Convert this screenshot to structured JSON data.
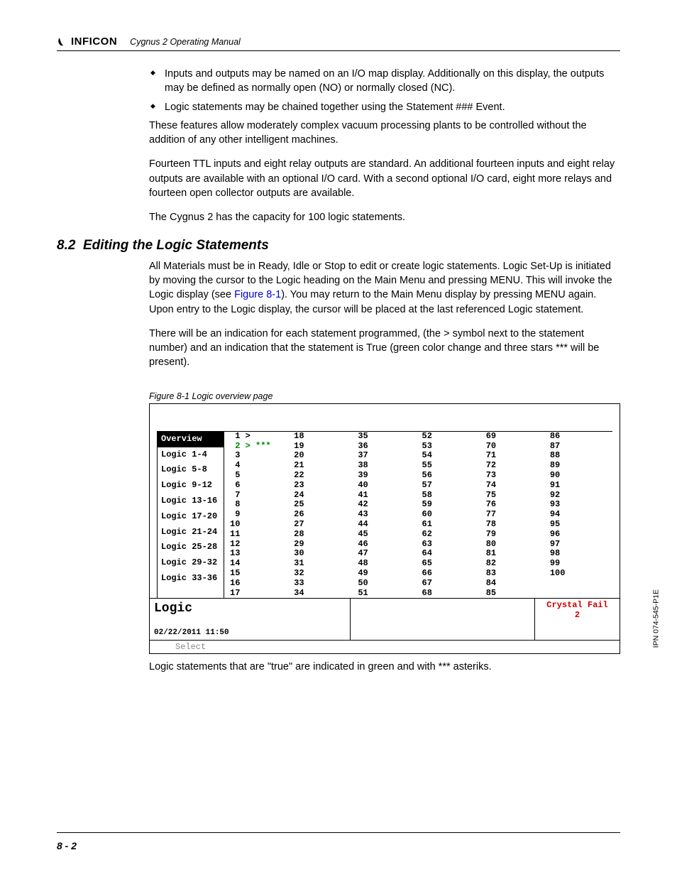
{
  "header": {
    "logo_text": "INFICON",
    "manual_title": "Cygnus 2 Operating Manual"
  },
  "bullets": [
    "Inputs and outputs may be named on an I/O map display. Additionally on this display, the outputs may be defined as normally open (NO) or normally closed (NC).",
    "Logic statements may be chained together using the Statement ### Event."
  ],
  "paras": {
    "p1": "These features allow moderately complex vacuum processing plants to be controlled without the addition of any other intelligent machines.",
    "p2": "Fourteen TTL inputs and eight relay outputs are standard. An additional fourteen inputs and eight relay outputs are available with an optional I/O card. With a second optional I/O card, eight more relays and fourteen open collector outputs are available.",
    "p3": "The Cygnus 2 has the capacity for 100 logic statements."
  },
  "section": {
    "num": "8.2",
    "title": "Editing the Logic Statements"
  },
  "paras2": {
    "p4_a": "All Materials must be in Ready, Idle or Stop to edit or create logic statements. Logic Set-Up is initiated by moving the cursor to the Logic heading on the Main Menu and pressing MENU. This will invoke the Logic display (see ",
    "p4_link": "Figure 8-1",
    "p4_b": "). You may return to the Main Menu display by pressing MENU again. Upon entry to the Logic display, the cursor will be placed at the last referenced Logic statement.",
    "p5": "There will be an indication for each statement programmed, (the > symbol next to the statement number) and an indication that the statement is True (green color change and three stars *** will be present)."
  },
  "figure": {
    "caption": "Figure 8-1  Logic overview page",
    "sidebar_items": [
      {
        "label": "Overview",
        "selected": true
      },
      {
        "label": "Logic 1-4",
        "selected": false
      },
      {
        "label": "Logic 5-8",
        "selected": false
      },
      {
        "label": "Logic 9-12",
        "selected": false
      },
      {
        "label": "Logic 13-16",
        "selected": false
      },
      {
        "label": "Logic 17-20",
        "selected": false
      },
      {
        "label": "Logic 21-24",
        "selected": false
      },
      {
        "label": "Logic 25-28",
        "selected": false
      },
      {
        "label": "Logic 29-32",
        "selected": false
      },
      {
        "label": "Logic 33-36",
        "selected": false
      }
    ],
    "columns": [
      [
        {
          "n": " 1",
          "mark": ">",
          "stars": "",
          "true": false
        },
        {
          "n": " 2",
          "mark": ">",
          "stars": "***",
          "true": true
        },
        {
          "n": " 3",
          "mark": "",
          "stars": "",
          "true": false
        },
        {
          "n": " 4",
          "mark": "",
          "stars": "",
          "true": false
        },
        {
          "n": " 5",
          "mark": "",
          "stars": "",
          "true": false
        },
        {
          "n": " 6",
          "mark": "",
          "stars": "",
          "true": false
        },
        {
          "n": " 7",
          "mark": "",
          "stars": "",
          "true": false
        },
        {
          "n": " 8",
          "mark": "",
          "stars": "",
          "true": false
        },
        {
          "n": " 9",
          "mark": "",
          "stars": "",
          "true": false
        },
        {
          "n": "10",
          "mark": "",
          "stars": "",
          "true": false
        },
        {
          "n": "11",
          "mark": "",
          "stars": "",
          "true": false
        },
        {
          "n": "12",
          "mark": "",
          "stars": "",
          "true": false
        },
        {
          "n": "13",
          "mark": "",
          "stars": "",
          "true": false
        },
        {
          "n": "14",
          "mark": "",
          "stars": "",
          "true": false
        },
        {
          "n": "15",
          "mark": "",
          "stars": "",
          "true": false
        },
        {
          "n": "16",
          "mark": "",
          "stars": "",
          "true": false
        },
        {
          "n": "17",
          "mark": "",
          "stars": "",
          "true": false
        }
      ],
      [
        {
          "n": "18"
        },
        {
          "n": "19"
        },
        {
          "n": "20"
        },
        {
          "n": "21"
        },
        {
          "n": "22"
        },
        {
          "n": "23"
        },
        {
          "n": "24"
        },
        {
          "n": "25"
        },
        {
          "n": "26"
        },
        {
          "n": "27"
        },
        {
          "n": "28"
        },
        {
          "n": "29"
        },
        {
          "n": "30"
        },
        {
          "n": "31"
        },
        {
          "n": "32"
        },
        {
          "n": "33"
        },
        {
          "n": "34"
        }
      ],
      [
        {
          "n": "35"
        },
        {
          "n": "36"
        },
        {
          "n": "37"
        },
        {
          "n": "38"
        },
        {
          "n": "39"
        },
        {
          "n": "40"
        },
        {
          "n": "41"
        },
        {
          "n": "42"
        },
        {
          "n": "43"
        },
        {
          "n": "44"
        },
        {
          "n": "45"
        },
        {
          "n": "46"
        },
        {
          "n": "47"
        },
        {
          "n": "48"
        },
        {
          "n": "49"
        },
        {
          "n": "50"
        },
        {
          "n": "51"
        }
      ],
      [
        {
          "n": "52"
        },
        {
          "n": "53"
        },
        {
          "n": "54"
        },
        {
          "n": "55"
        },
        {
          "n": "56"
        },
        {
          "n": "57"
        },
        {
          "n": "58"
        },
        {
          "n": "59"
        },
        {
          "n": "60"
        },
        {
          "n": "61"
        },
        {
          "n": "62"
        },
        {
          "n": "63"
        },
        {
          "n": "64"
        },
        {
          "n": "65"
        },
        {
          "n": "66"
        },
        {
          "n": "67"
        },
        {
          "n": "68"
        }
      ],
      [
        {
          "n": "69"
        },
        {
          "n": "70"
        },
        {
          "n": "71"
        },
        {
          "n": "72"
        },
        {
          "n": "73"
        },
        {
          "n": "74"
        },
        {
          "n": "75"
        },
        {
          "n": "76"
        },
        {
          "n": "77"
        },
        {
          "n": "78"
        },
        {
          "n": "79"
        },
        {
          "n": "80"
        },
        {
          "n": "81"
        },
        {
          "n": "82"
        },
        {
          "n": "83"
        },
        {
          "n": "84"
        },
        {
          "n": "85"
        }
      ],
      [
        {
          "n": "86"
        },
        {
          "n": "87"
        },
        {
          "n": "88"
        },
        {
          "n": "89"
        },
        {
          "n": "90"
        },
        {
          "n": "91"
        },
        {
          "n": "92"
        },
        {
          "n": "93"
        },
        {
          "n": "94"
        },
        {
          "n": "95"
        },
        {
          "n": "96"
        },
        {
          "n": "97"
        },
        {
          "n": "98"
        },
        {
          "n": "99"
        },
        {
          "n": "100"
        }
      ]
    ],
    "footer": {
      "logic_label": "Logic",
      "timestamp": "02/22/2011  11:50",
      "crystal_fail": "Crystal Fail",
      "crystal_fail_n": "2",
      "select": "Select"
    }
  },
  "note_after": "Logic statements that are \"true\" are indicated in green and with *** asteriks.",
  "side_text": "IPN 074-545-P1E",
  "page_num": "8 - 2"
}
